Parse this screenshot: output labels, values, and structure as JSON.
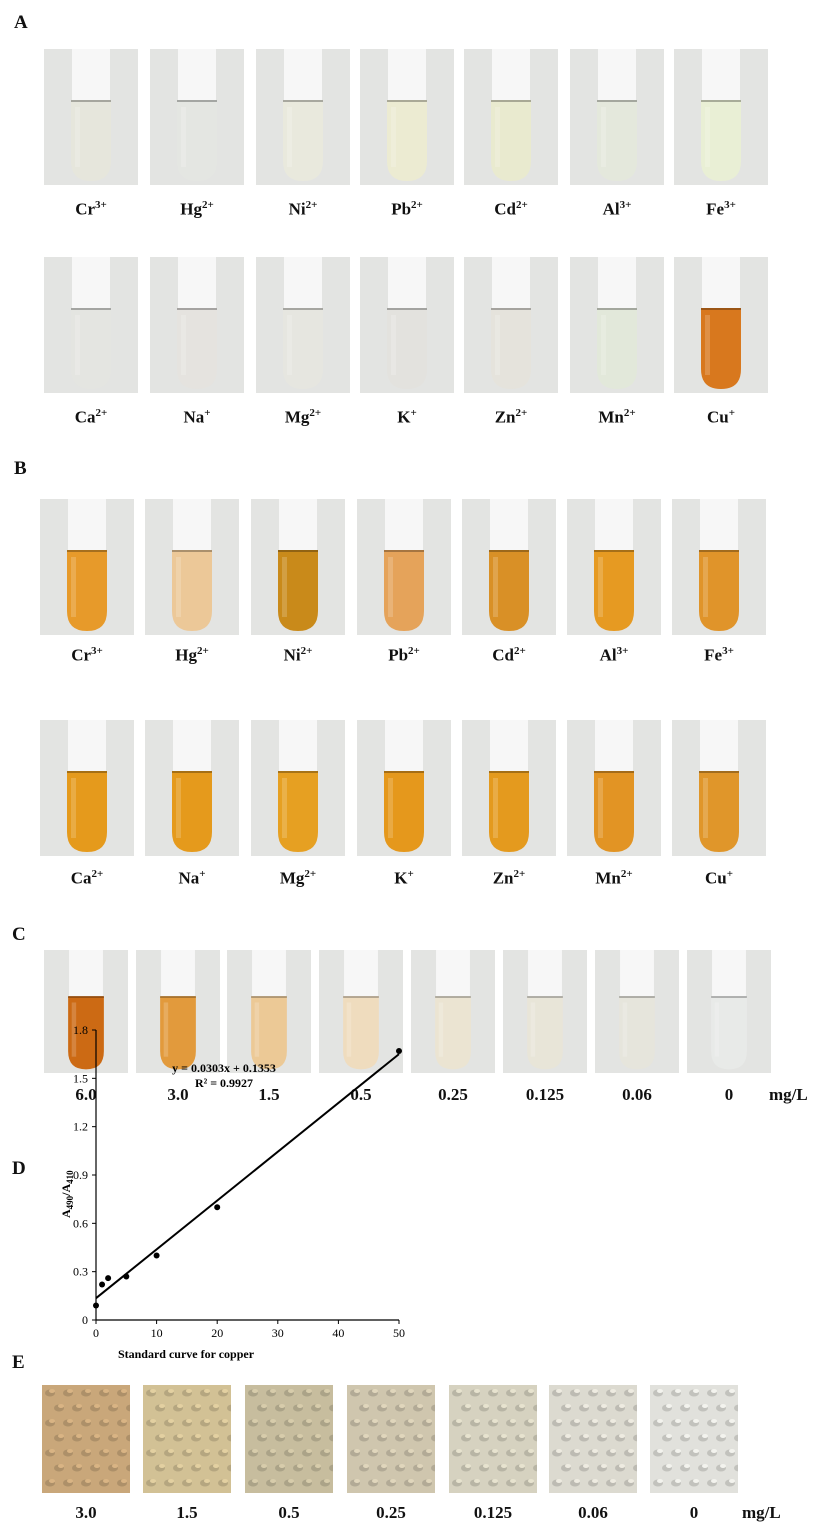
{
  "panels": {
    "a": {
      "letter": "A"
    },
    "b": {
      "letter": "B"
    },
    "c": {
      "letter": "C"
    },
    "d": {
      "letter": "D"
    },
    "e": {
      "letter": "E"
    }
  },
  "ions_row1": [
    {
      "base": "Cr",
      "charge": "3+"
    },
    {
      "base": "Hg",
      "charge": "2+"
    },
    {
      "base": "Ni",
      "charge": "2+"
    },
    {
      "base": "Pb",
      "charge": "2+"
    },
    {
      "base": "Cd",
      "charge": "2+"
    },
    {
      "base": "Al",
      "charge": "3+"
    },
    {
      "base": "Fe",
      "charge": "3+"
    }
  ],
  "ions_row2": [
    {
      "base": "Ca",
      "charge": "2+"
    },
    {
      "base": "Na",
      "charge": "+"
    },
    {
      "base": "Mg",
      "charge": "2+"
    },
    {
      "base": "K",
      "charge": "+"
    },
    {
      "base": "Zn",
      "charge": "2+"
    },
    {
      "base": "Mn",
      "charge": "2+"
    },
    {
      "base": "Cu",
      "charge": "+"
    }
  ],
  "tube_colors": {
    "a_row1": [
      "#e6e6dc",
      "#e4e6e2",
      "#e9e9dd",
      "#ecebd2",
      "#e9eacf",
      "#e4e8dc",
      "#e9efd5"
    ],
    "a_row2": [
      "#e4e5e1",
      "#e5e3df",
      "#e6e6e0",
      "#e3e2de",
      "#e5e3dc",
      "#e2e8da",
      "#d8781e"
    ],
    "b_row1": [
      "#e79a2a",
      "#ecc898",
      "#c98a1a",
      "#e5a35a",
      "#d99026",
      "#e69a22",
      "#e0942a"
    ],
    "b_row2": [
      "#e59a1c",
      "#e59a1c",
      "#e6a022",
      "#e5981c",
      "#e49a1e",
      "#e29424",
      "#e0962a"
    ],
    "c": [
      "#cc6a14",
      "#e29a3c",
      "#ecc996",
      "#efdcbe",
      "#ebe4d2",
      "#e8e5d8",
      "#e6e5dc",
      "#e8eae8"
    ]
  },
  "concentrations_c": [
    "6.0",
    "3.0",
    "1.5",
    "0.5",
    "0.25",
    "0.125",
    "0.06",
    "0"
  ],
  "concentrations_e": [
    "3.0",
    "1.5",
    "0.5",
    "0.25",
    "0.125",
    "0.06",
    "0"
  ],
  "paper_colors": [
    "#c9a77a",
    "#d2c195",
    "#c7bd9e",
    "#cfc6ae",
    "#d6d2c0",
    "#dcdad0",
    "#e1e1dc"
  ],
  "unit_label": "mg/L",
  "chart_data": {
    "type": "scatter",
    "title": "",
    "xlabel": "Standard curve for copper",
    "ylabel": "A490/A410",
    "ylabel_main": "A",
    "ylabel_sub1": "490",
    "ylabel_sep": "/A",
    "ylabel_sub2": "410",
    "x_ticks": [
      "0",
      "10",
      "20",
      "30",
      "40",
      "50"
    ],
    "y_ticks": [
      "0",
      "0.3",
      "0.6",
      "0.9",
      "1.2",
      "1.5",
      "1.8"
    ],
    "xlim": [
      0,
      50
    ],
    "ylim": [
      0,
      1.8
    ],
    "points": [
      {
        "x": 0,
        "y": 0.09
      },
      {
        "x": 1,
        "y": 0.22
      },
      {
        "x": 2,
        "y": 0.26
      },
      {
        "x": 5,
        "y": 0.27
      },
      {
        "x": 10,
        "y": 0.4
      },
      {
        "x": 20,
        "y": 0.7
      },
      {
        "x": 50,
        "y": 1.67
      }
    ],
    "trendline": {
      "slope": 0.0303,
      "intercept": 0.1353
    },
    "equation": "y = 0.0303x + 0.1353",
    "r_squared": "R² = 0.9927",
    "grid": false
  }
}
